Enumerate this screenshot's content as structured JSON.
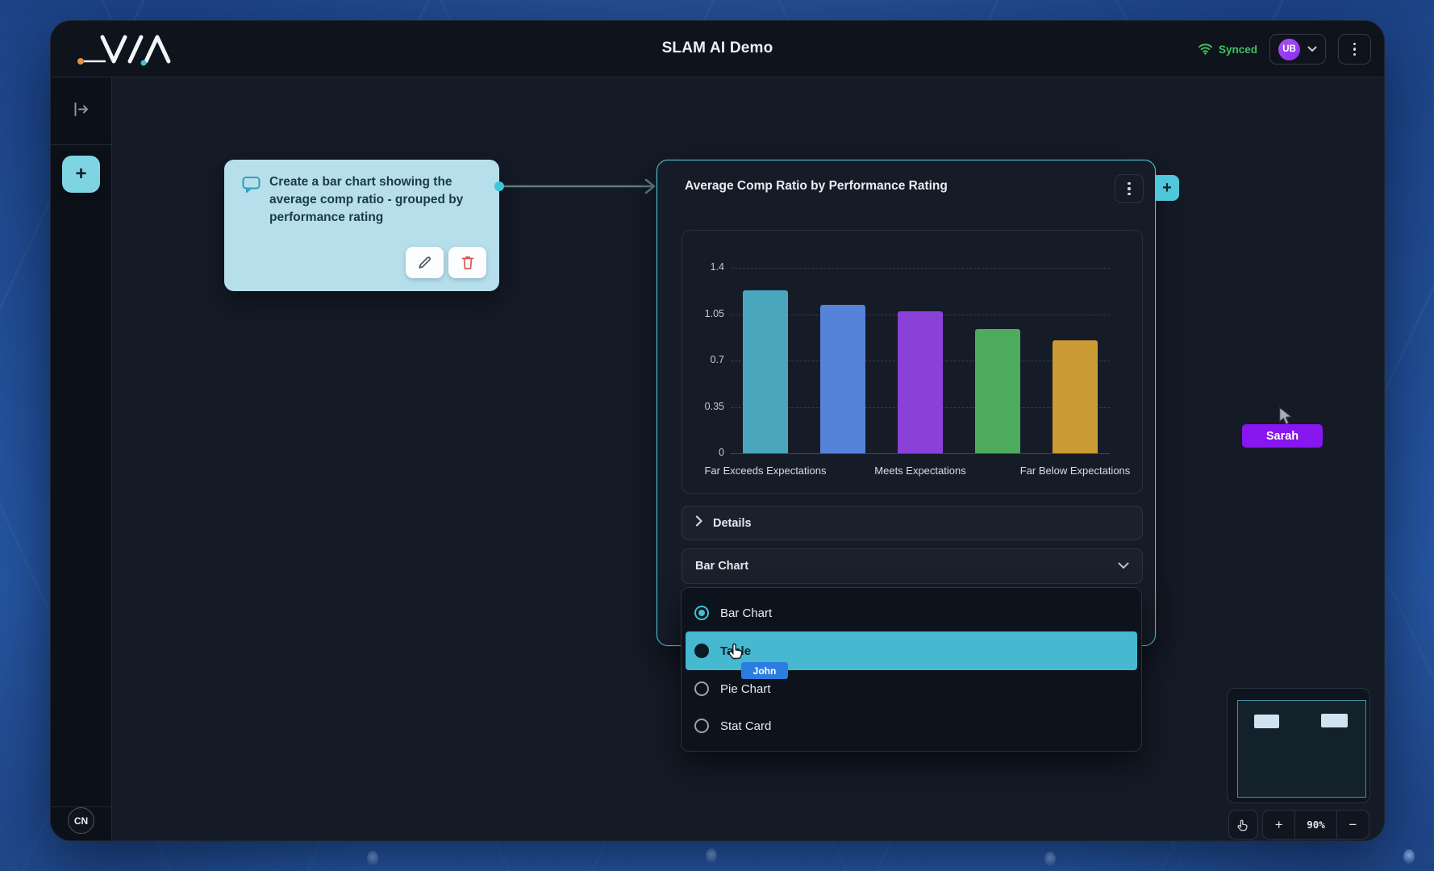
{
  "header": {
    "logo_name": "VIA",
    "title": "SLAM AI Demo",
    "sync_label": "Synced",
    "user_avatar": "UB"
  },
  "sidebar": {
    "add_label": "+",
    "bottom_avatar": "CN"
  },
  "canvas": {
    "prompt_card": {
      "text": "Create a bar chart showing the average comp ratio - grouped by performance rating"
    },
    "chart_card": {
      "title": "Average Comp Ratio by Performance Rating",
      "add_label": "+",
      "details_label": "Details",
      "type_select": {
        "value": "Bar Chart"
      },
      "type_options": [
        {
          "label": "Bar Chart",
          "state": "selected"
        },
        {
          "label": "Table",
          "state": "highlighted"
        },
        {
          "label": "Pie Chart",
          "state": "unselected"
        },
        {
          "label": "Stat Card",
          "state": "unselected"
        }
      ]
    },
    "cursors": [
      {
        "name": "John",
        "color": "#2c7de0"
      },
      {
        "name": "Sarah",
        "color": "#8716ef"
      }
    ]
  },
  "minimap": {
    "zoom_level": "90%",
    "zoom_in_label": "+",
    "zoom_out_label": "−"
  },
  "chart_data": {
    "type": "bar",
    "title": "Average Comp Ratio by Performance Rating",
    "categories": [
      "Far Exceeds Expectations",
      "",
      "Meets Expectations",
      "",
      "Far Below Expectations"
    ],
    "values": [
      1.23,
      1.12,
      1.07,
      0.94,
      0.85
    ],
    "bar_colors": [
      "#4aa6bd",
      "#5583d9",
      "#8a41d8",
      "#4cab5d",
      "#cb9b35"
    ],
    "yticks": [
      0,
      0.35,
      0.7,
      1.05,
      1.4
    ],
    "ylim": [
      0,
      1.4
    ],
    "xlabel": "",
    "ylabel": "",
    "grid": "dashed-horizontal",
    "legend": "none"
  }
}
